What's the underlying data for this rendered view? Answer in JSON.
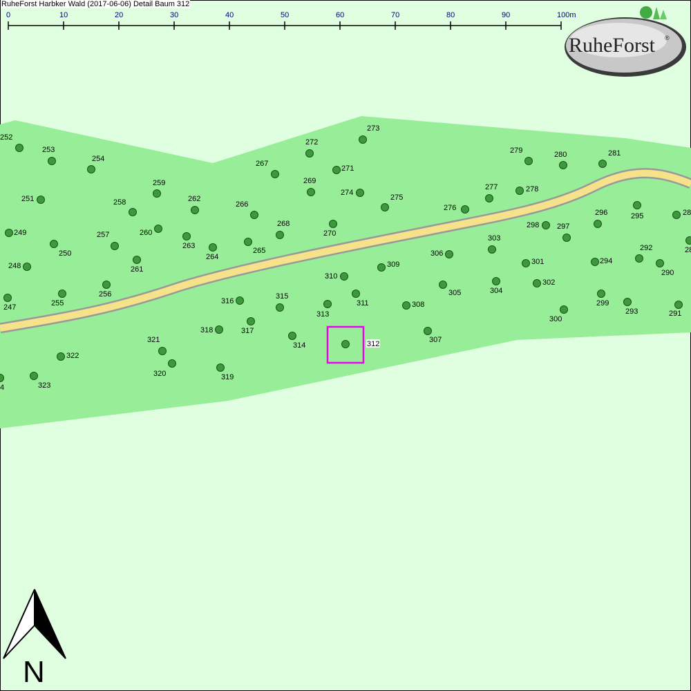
{
  "title": "RuheForst Harbker Wald (2017-06-06) Detail  Baum 312",
  "scale_bar": {
    "labels": [
      "0",
      "10",
      "20",
      "30",
      "40",
      "50",
      "60",
      "70",
      "80",
      "90",
      "100m"
    ]
  },
  "logo": {
    "text": "RuheForst",
    "registered": "®"
  },
  "north_arrow": {
    "label": "N"
  },
  "selected_tree": "312",
  "colors": {
    "background": "#e0fee0",
    "forest": "#98ee98",
    "path": "#f7e28c",
    "path_border": "#999999",
    "tree": "#3c9a3c",
    "highlight": "#ee00ee"
  },
  "trees": [
    "252",
    "253",
    "254",
    "251",
    "249",
    "250",
    "248",
    "247",
    "255",
    "256",
    "257",
    "258",
    "259",
    "260",
    "261",
    "262",
    "263",
    "264",
    "265",
    "266",
    "267",
    "268",
    "269",
    "270",
    "271",
    "272",
    "273",
    "274",
    "275",
    "276",
    "277",
    "278",
    "279",
    "280",
    "281",
    "296",
    "295",
    "298",
    "297",
    "303",
    "306",
    "301",
    "294",
    "292",
    "290",
    "302",
    "304",
    "305",
    "299",
    "293",
    "300",
    "291",
    "28",
    "28",
    "309",
    "310",
    "311",
    "308",
    "307",
    "313",
    "315",
    "316",
    "317",
    "318",
    "314",
    "312",
    "321",
    "320",
    "319",
    "322",
    "323",
    "4"
  ]
}
